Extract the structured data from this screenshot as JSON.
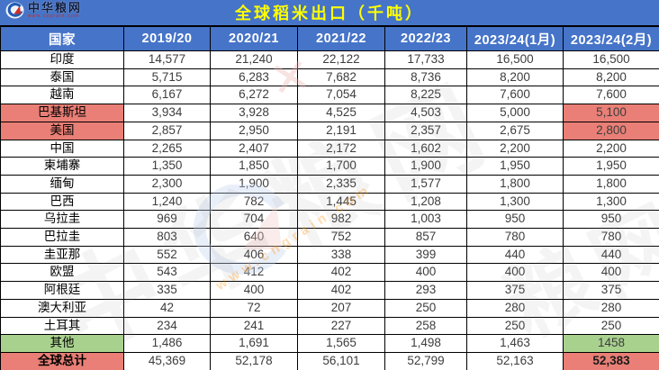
{
  "logo": {
    "name": "中华粮网",
    "url": "www.cngrain.com"
  },
  "title": "全球稻米出口（千吨）",
  "colors": {
    "header_blue": "#4674C8",
    "title_yellow": "#FFFF00",
    "highlight_red": "#E97F76",
    "highlight_green": "#A9D18E"
  },
  "watermark": {
    "text": "中华粮网",
    "text2": "粮网",
    "url": "www.cngrain.com",
    "cross": "✕"
  },
  "table": {
    "columns": [
      "国家",
      "2019/20",
      "2020/21",
      "2021/22",
      "2022/23",
      "2023/24(1月)",
      "2023/24(2月)"
    ],
    "rows": [
      {
        "country": "印度",
        "values": [
          "14,577",
          "21,240",
          "22,122",
          "17,733",
          "16,500",
          "16,500"
        ],
        "highlight": null,
        "is_total": false
      },
      {
        "country": "泰国",
        "values": [
          "5,715",
          "6,283",
          "7,682",
          "8,736",
          "8,200",
          "8,200"
        ],
        "highlight": null,
        "is_total": false
      },
      {
        "country": "越南",
        "values": [
          "6,167",
          "6,272",
          "7,054",
          "8,225",
          "7,600",
          "7,600"
        ],
        "highlight": null,
        "is_total": false
      },
      {
        "country": "巴基斯坦",
        "values": [
          "3,934",
          "3,928",
          "4,525",
          "4,503",
          "5,000",
          "5,100"
        ],
        "highlight": "red",
        "is_total": false
      },
      {
        "country": "美国",
        "values": [
          "2,857",
          "2,950",
          "2,191",
          "2,357",
          "2,675",
          "2,800"
        ],
        "highlight": "red",
        "is_total": false
      },
      {
        "country": "中国",
        "values": [
          "2,265",
          "2,407",
          "2,172",
          "1,602",
          "2,200",
          "2,200"
        ],
        "highlight": null,
        "is_total": false
      },
      {
        "country": "柬埔寨",
        "values": [
          "1,350",
          "1,850",
          "1,700",
          "1,900",
          "1,950",
          "1,950"
        ],
        "highlight": null,
        "is_total": false
      },
      {
        "country": "缅甸",
        "values": [
          "2,300",
          "1,900",
          "2,335",
          "1,577",
          "1,800",
          "1,800"
        ],
        "highlight": null,
        "is_total": false
      },
      {
        "country": "巴西",
        "values": [
          "1,240",
          "782",
          "1,445",
          "1,208",
          "1,300",
          "1,300"
        ],
        "highlight": null,
        "is_total": false
      },
      {
        "country": "乌拉圭",
        "values": [
          "969",
          "704",
          "982",
          "1,003",
          "950",
          "950"
        ],
        "highlight": null,
        "is_total": false
      },
      {
        "country": "巴拉圭",
        "values": [
          "803",
          "640",
          "752",
          "857",
          "780",
          "780"
        ],
        "highlight": null,
        "is_total": false
      },
      {
        "country": "圭亚那",
        "values": [
          "552",
          "406",
          "338",
          "399",
          "440",
          "440"
        ],
        "highlight": null,
        "is_total": false
      },
      {
        "country": "欧盟",
        "values": [
          "543",
          "412",
          "402",
          "400",
          "400",
          "400"
        ],
        "highlight": null,
        "is_total": false
      },
      {
        "country": "阿根廷",
        "values": [
          "335",
          "400",
          "402",
          "293",
          "375",
          "375"
        ],
        "highlight": null,
        "is_total": false
      },
      {
        "country": "澳大利亚",
        "values": [
          "42",
          "72",
          "207",
          "250",
          "280",
          "280"
        ],
        "highlight": null,
        "is_total": false
      },
      {
        "country": "土耳其",
        "values": [
          "234",
          "241",
          "227",
          "258",
          "250",
          "250"
        ],
        "highlight": null,
        "is_total": false
      },
      {
        "country": "其他",
        "values": [
          "1,486",
          "1,691",
          "1,565",
          "1,498",
          "1,463",
          "1458"
        ],
        "highlight": "green",
        "is_total": false
      },
      {
        "country": "全球总计",
        "values": [
          "45,369",
          "52,178",
          "56,101",
          "52,799",
          "52,163",
          "52,383"
        ],
        "highlight": "red",
        "is_total": true
      }
    ]
  },
  "chart_data": {
    "type": "table",
    "title": "全球稻米出口（千吨）",
    "columns": [
      "国家",
      "2019/20",
      "2020/21",
      "2021/22",
      "2022/23",
      "2023/24(1月)",
      "2023/24(2月)"
    ],
    "rows": [
      {
        "country": "印度",
        "values": [
          14577,
          21240,
          22122,
          17733,
          16500,
          16500
        ]
      },
      {
        "country": "泰国",
        "values": [
          5715,
          6283,
          7682,
          8736,
          8200,
          8200
        ]
      },
      {
        "country": "越南",
        "values": [
          6167,
          6272,
          7054,
          8225,
          7600,
          7600
        ]
      },
      {
        "country": "巴基斯坦",
        "values": [
          3934,
          3928,
          4525,
          4503,
          5000,
          5100
        ]
      },
      {
        "country": "美国",
        "values": [
          2857,
          2950,
          2191,
          2357,
          2675,
          2800
        ]
      },
      {
        "country": "中国",
        "values": [
          2265,
          2407,
          2172,
          1602,
          2200,
          2200
        ]
      },
      {
        "country": "柬埔寨",
        "values": [
          1350,
          1850,
          1700,
          1900,
          1950,
          1950
        ]
      },
      {
        "country": "缅甸",
        "values": [
          2300,
          1900,
          2335,
          1577,
          1800,
          1800
        ]
      },
      {
        "country": "巴西",
        "values": [
          1240,
          782,
          1445,
          1208,
          1300,
          1300
        ]
      },
      {
        "country": "乌拉圭",
        "values": [
          969,
          704,
          982,
          1003,
          950,
          950
        ]
      },
      {
        "country": "巴拉圭",
        "values": [
          803,
          640,
          752,
          857,
          780,
          780
        ]
      },
      {
        "country": "圭亚那",
        "values": [
          552,
          406,
          338,
          399,
          440,
          440
        ]
      },
      {
        "country": "欧盟",
        "values": [
          543,
          412,
          402,
          400,
          400,
          400
        ]
      },
      {
        "country": "阿根廷",
        "values": [
          335,
          400,
          402,
          293,
          375,
          375
        ]
      },
      {
        "country": "澳大利亚",
        "values": [
          42,
          72,
          207,
          250,
          280,
          280
        ]
      },
      {
        "country": "土耳其",
        "values": [
          234,
          241,
          227,
          258,
          250,
          250
        ]
      },
      {
        "country": "其他",
        "values": [
          1486,
          1691,
          1565,
          1498,
          1463,
          1458
        ]
      },
      {
        "country": "全球总计",
        "values": [
          45369,
          52178,
          56101,
          52799,
          52163,
          52383
        ]
      }
    ]
  }
}
